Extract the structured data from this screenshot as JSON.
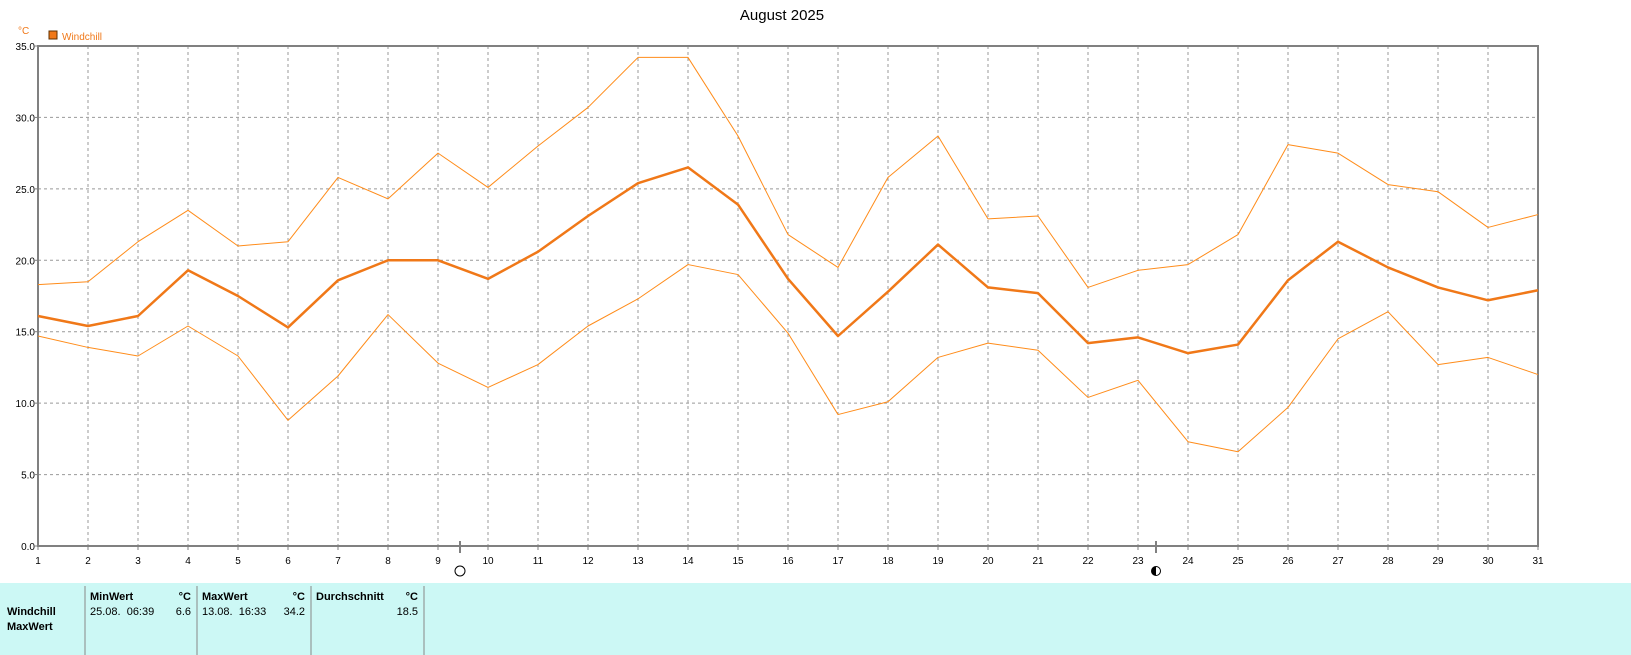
{
  "chart_data": {
    "type": "line",
    "title": "August 2025",
    "y_unit": "°C",
    "x": [
      1,
      2,
      3,
      4,
      5,
      6,
      7,
      8,
      9,
      10,
      11,
      12,
      13,
      14,
      15,
      16,
      17,
      18,
      19,
      20,
      21,
      22,
      23,
      24,
      25,
      26,
      27,
      28,
      29,
      30,
      31
    ],
    "xlim": [
      1,
      31
    ],
    "xticks": [
      1,
      2,
      3,
      4,
      5,
      6,
      7,
      8,
      9,
      10,
      11,
      12,
      13,
      14,
      15,
      16,
      17,
      18,
      19,
      20,
      21,
      22,
      23,
      24,
      25,
      26,
      27,
      28,
      29,
      30,
      31
    ],
    "ylim": [
      0,
      35
    ],
    "yticks": [
      {
        "value": 0,
        "label": "0.0"
      },
      {
        "value": 5,
        "label": "5.0"
      },
      {
        "value": 10,
        "label": "10.0"
      },
      {
        "value": 15,
        "label": "15.0"
      },
      {
        "value": 20,
        "label": "20.0"
      },
      {
        "value": 25,
        "label": "25.0"
      },
      {
        "value": 30,
        "label": "30.0"
      },
      {
        "value": 35,
        "label": "35.0"
      }
    ],
    "grid": true,
    "series": [
      {
        "name": "Windchill",
        "color": "#f07818",
        "width": 2.5,
        "values": [
          16.1,
          15.4,
          16.1,
          19.3,
          17.5,
          15.3,
          18.6,
          20.0,
          20.0,
          18.7,
          20.6,
          23.1,
          25.4,
          26.5,
          23.9,
          18.7,
          14.7,
          17.8,
          21.1,
          18.1,
          17.7,
          14.2,
          14.6,
          13.5,
          14.1,
          18.6,
          21.3,
          19.5,
          18.1,
          17.2,
          17.9
        ]
      },
      {
        "color": "#ff8c1a",
        "width": 1,
        "values": [
          18.3,
          18.5,
          21.3,
          23.5,
          21.0,
          21.3,
          25.8,
          24.3,
          27.5,
          25.1,
          28.0,
          30.7,
          34.2,
          34.2,
          28.7,
          21.8,
          19.5,
          25.8,
          28.7,
          22.9,
          23.1,
          18.1,
          19.3,
          19.7,
          21.8,
          28.1,
          27.5,
          25.3,
          24.8,
          22.3,
          23.2
        ]
      },
      {
        "color": "#ff8c1a",
        "width": 1,
        "values": [
          14.7,
          13.9,
          13.3,
          15.4,
          13.3,
          8.8,
          11.9,
          16.2,
          12.8,
          11.1,
          12.7,
          15.4,
          17.3,
          19.7,
          19.0,
          14.9,
          9.2,
          10.1,
          13.2,
          14.2,
          13.7,
          10.4,
          11.6,
          7.3,
          6.6,
          9.7,
          14.5,
          16.4,
          12.7,
          13.2,
          12.0
        ]
      }
    ]
  },
  "table": {
    "columns": [
      {
        "label": "MinWert",
        "unit": "°C"
      },
      {
        "label": "MaxWert",
        "unit": "°C"
      },
      {
        "label": "Durchschnitt",
        "unit": "°C"
      }
    ],
    "rows": [
      {
        "label": "Windchill",
        "cells": [
          "25.08.  06:39",
          "6.6",
          "13.08.  16:33",
          "34.2",
          "18.5"
        ]
      },
      {
        "label": "MaxWert"
      }
    ]
  }
}
